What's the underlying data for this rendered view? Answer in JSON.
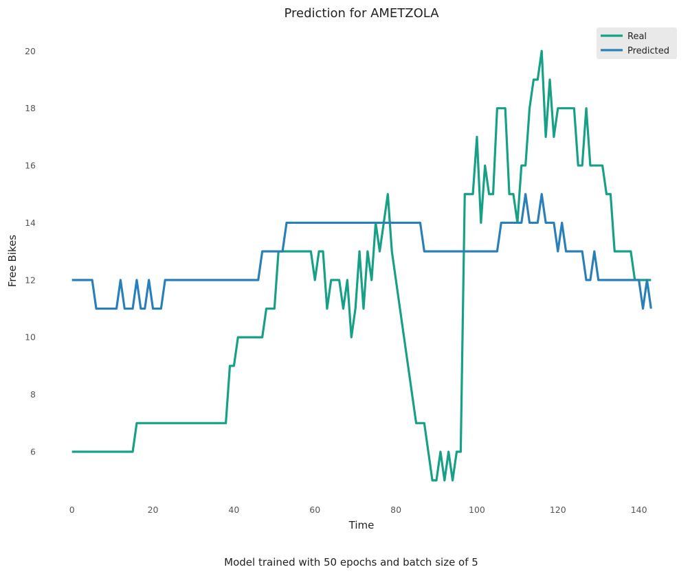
{
  "chart_data": {
    "type": "line",
    "title": "Prediction for AMETZOLA",
    "xlabel": "Time",
    "ylabel": "Free Bikes",
    "caption": "Model trained with 50 epochs and batch size of 5",
    "xlim": [
      -3,
      146
    ],
    "ylim": [
      4.25,
      20.75
    ],
    "xticks": [
      0,
      20,
      40,
      60,
      80,
      100,
      120,
      140
    ],
    "yticks": [
      6,
      8,
      10,
      12,
      14,
      16,
      18,
      20
    ],
    "grid": false,
    "legend": {
      "location": "top-right"
    },
    "series": [
      {
        "name": "Real",
        "color": "#16a085",
        "x": [
          0,
          1,
          2,
          3,
          4,
          5,
          6,
          7,
          8,
          9,
          10,
          11,
          12,
          13,
          14,
          15,
          16,
          17,
          18,
          19,
          20,
          21,
          22,
          23,
          24,
          25,
          26,
          27,
          28,
          29,
          30,
          31,
          32,
          33,
          34,
          35,
          36,
          37,
          38,
          39,
          40,
          41,
          42,
          43,
          44,
          45,
          46,
          47,
          48,
          49,
          50,
          51,
          52,
          53,
          54,
          55,
          56,
          57,
          58,
          59,
          60,
          61,
          62,
          63,
          64,
          65,
          66,
          67,
          68,
          69,
          70,
          71,
          72,
          73,
          74,
          75,
          76,
          77,
          78,
          79,
          80,
          81,
          82,
          83,
          84,
          85,
          86,
          87,
          88,
          89,
          90,
          91,
          92,
          93,
          94,
          95,
          96,
          97,
          98,
          99,
          100,
          101,
          102,
          103,
          104,
          105,
          106,
          107,
          108,
          109,
          110,
          111,
          112,
          113,
          114,
          115,
          116,
          117,
          118,
          119,
          120,
          121,
          122,
          123,
          124,
          125,
          126,
          127,
          128,
          129,
          130,
          131,
          132,
          133,
          134,
          135,
          136,
          137,
          138,
          139,
          140,
          141,
          142,
          143
        ],
        "values": [
          6,
          6,
          6,
          6,
          6,
          6,
          6,
          6,
          6,
          6,
          6,
          6,
          6,
          6,
          6,
          6,
          7,
          7,
          7,
          7,
          7,
          7,
          7,
          7,
          7,
          7,
          7,
          7,
          7,
          7,
          7,
          7,
          7,
          7,
          7,
          7,
          7,
          7,
          7,
          9,
          9,
          10,
          10,
          10,
          10,
          10,
          10,
          10,
          11,
          11,
          11,
          13,
          13,
          13,
          13,
          13,
          13,
          13,
          13,
          13,
          12,
          13,
          13,
          11,
          12,
          12,
          12,
          11,
          12,
          10,
          11,
          13,
          11,
          13,
          12,
          14,
          13,
          14,
          15,
          13,
          12,
          11,
          10,
          9,
          8,
          7,
          7,
          7,
          6,
          5,
          5,
          6,
          5,
          6,
          5,
          6,
          6,
          15,
          15,
          15,
          17,
          14,
          16,
          15,
          15,
          18,
          18,
          18,
          15,
          15,
          14,
          16,
          16,
          18,
          19,
          19,
          20,
          17,
          19,
          17,
          18,
          18,
          18,
          18,
          18,
          16,
          16,
          18,
          16,
          16,
          16,
          16,
          15,
          15,
          13,
          13,
          13,
          13,
          13,
          12,
          12,
          12,
          12,
          12
        ]
      },
      {
        "name": "Predicted",
        "color": "#2980b9",
        "x": [
          0,
          1,
          2,
          3,
          4,
          5,
          6,
          7,
          8,
          9,
          10,
          11,
          12,
          13,
          14,
          15,
          16,
          17,
          18,
          19,
          20,
          21,
          22,
          23,
          24,
          25,
          26,
          27,
          28,
          29,
          30,
          31,
          32,
          33,
          34,
          35,
          36,
          37,
          38,
          39,
          40,
          41,
          42,
          43,
          44,
          45,
          46,
          47,
          48,
          49,
          50,
          51,
          52,
          53,
          54,
          55,
          56,
          57,
          58,
          59,
          60,
          61,
          62,
          63,
          64,
          65,
          66,
          67,
          68,
          69,
          70,
          71,
          72,
          73,
          74,
          75,
          76,
          77,
          78,
          79,
          80,
          81,
          82,
          83,
          84,
          85,
          86,
          87,
          88,
          89,
          90,
          91,
          92,
          93,
          94,
          95,
          96,
          97,
          98,
          99,
          100,
          101,
          102,
          103,
          104,
          105,
          106,
          107,
          108,
          109,
          110,
          111,
          112,
          113,
          114,
          115,
          116,
          117,
          118,
          119,
          120,
          121,
          122,
          123,
          124,
          125,
          126,
          127,
          128,
          129,
          130,
          131,
          132,
          133,
          134,
          135,
          136,
          137,
          138,
          139,
          140,
          141,
          142,
          143
        ],
        "values": [
          12,
          12,
          12,
          12,
          12,
          12,
          11,
          11,
          11,
          11,
          11,
          11,
          12,
          11,
          11,
          11,
          12,
          11,
          11,
          12,
          11,
          11,
          11,
          12,
          12,
          12,
          12,
          12,
          12,
          12,
          12,
          12,
          12,
          12,
          12,
          12,
          12,
          12,
          12,
          12,
          12,
          12,
          12,
          12,
          12,
          12,
          12,
          13,
          13,
          13,
          13,
          13,
          13,
          14,
          14,
          14,
          14,
          14,
          14,
          14,
          14,
          14,
          14,
          14,
          14,
          14,
          14,
          14,
          14,
          14,
          14,
          14,
          14,
          14,
          14,
          14,
          14,
          14,
          14,
          14,
          14,
          14,
          14,
          14,
          14,
          14,
          14,
          13,
          13,
          13,
          13,
          13,
          13,
          13,
          13,
          13,
          13,
          13,
          13,
          13,
          13,
          13,
          13,
          13,
          13,
          13,
          14,
          14,
          14,
          14,
          14,
          14,
          15,
          14,
          14,
          14,
          15,
          14,
          14,
          14,
          13,
          14,
          13,
          13,
          13,
          13,
          13,
          12,
          12,
          13,
          12,
          12,
          12,
          12,
          12,
          12,
          12,
          12,
          12,
          12,
          12,
          11,
          12,
          11
        ]
      }
    ]
  }
}
